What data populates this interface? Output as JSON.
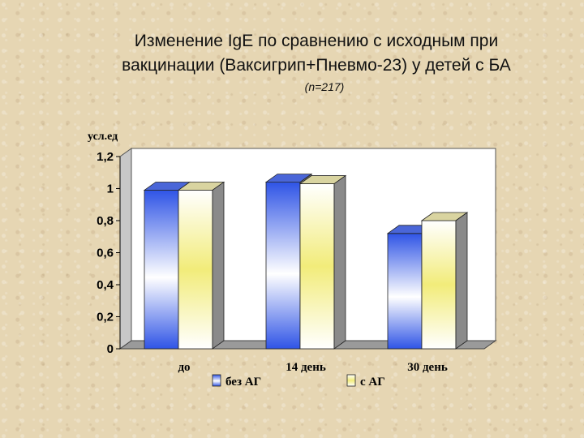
{
  "title": "Изменение  IgE по сравнению с исходным при вакцинации (Ваксигрип+Пневмо-23) у детей с БА",
  "title_line1": "Изменение  IgE по сравнению с исходным при",
  "title_line2": "вакцинации (Ваксигрип+Пневмо-23) у детей с БА",
  "subtitle": "(n=217)",
  "chart_data": {
    "type": "bar",
    "ylabel": "усл.ед",
    "ylim": [
      0,
      1.2
    ],
    "yticks": [
      "0",
      "0,2",
      "0,4",
      "0,6",
      "0,8",
      "1",
      "1,2"
    ],
    "categories": [
      "до",
      "14 день",
      "30 день"
    ],
    "series": [
      {
        "name": "без АГ",
        "values": [
          0.99,
          1.04,
          0.72
        ],
        "color": "#2f54e6"
      },
      {
        "name": "с АГ",
        "values": [
          0.99,
          1.03,
          0.8
        ],
        "color": "#f2ec7a"
      }
    ],
    "grid": false,
    "legend": "bottom"
  }
}
